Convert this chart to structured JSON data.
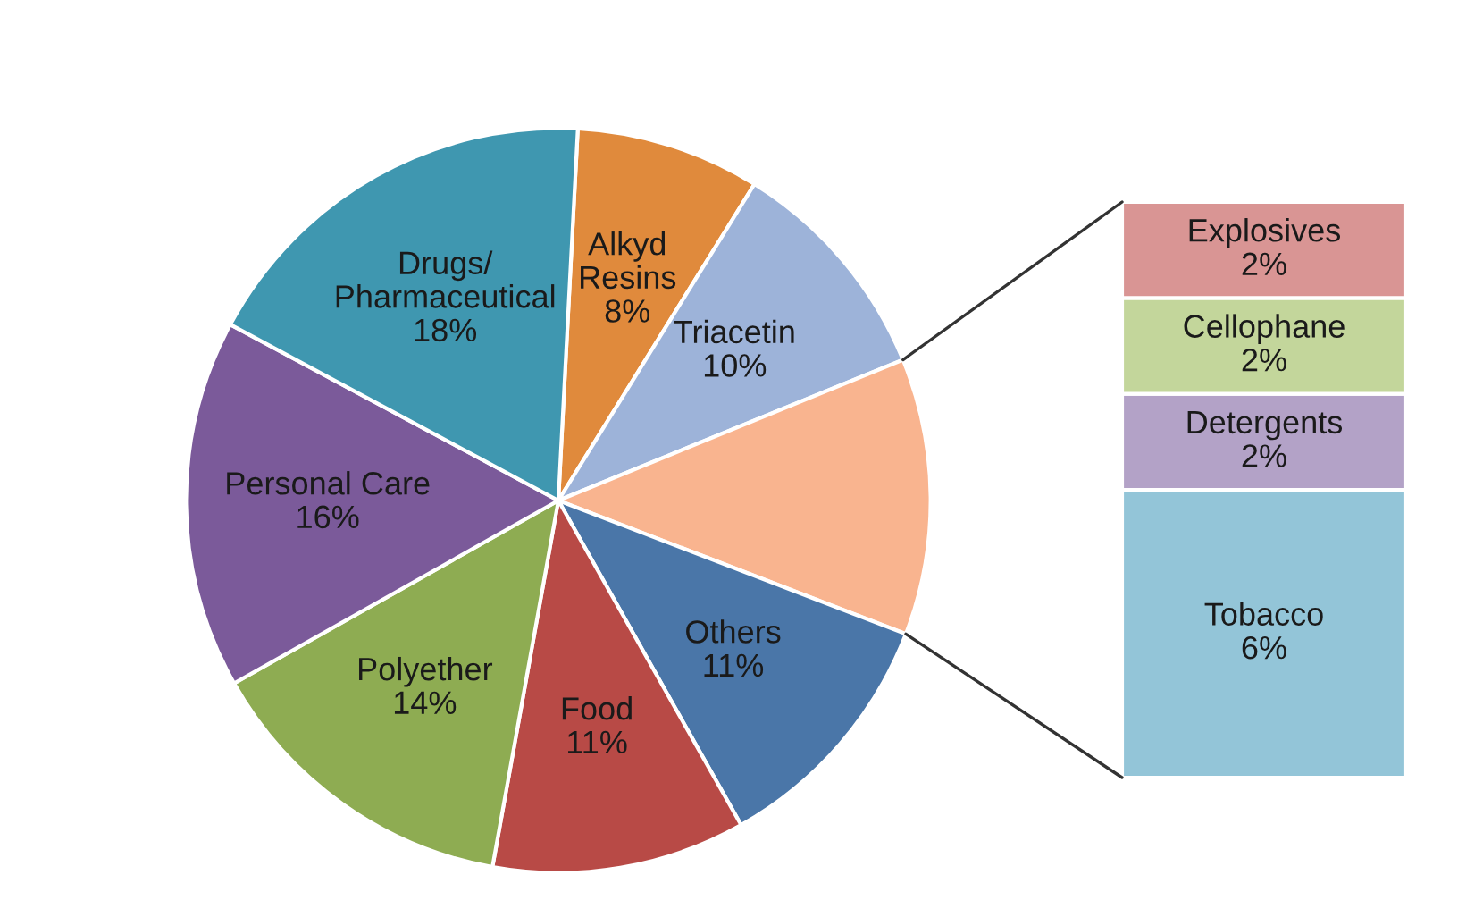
{
  "chart_data": [
    {
      "type": "pie",
      "categories": [
        "Alkyd\nResins",
        "Triacetin",
        null,
        "Others",
        "Food",
        "Polyether",
        "Personal Care",
        "Drugs/\nPharmaceutical"
      ],
      "values": [
        8,
        10,
        12,
        11,
        11,
        14,
        16,
        18
      ],
      "value_labels": [
        "8%",
        "10%",
        null,
        "11%",
        "11%",
        "14%",
        "16%",
        "18%"
      ],
      "colors": [
        "#e08a3c",
        "#9db3d9",
        "#f9b48f",
        "#4a76a8",
        "#b84a46",
        "#8eac52",
        "#7b5a9a",
        "#3f97b0"
      ]
    },
    {
      "type": "bar",
      "stacked": true,
      "categories": [
        null
      ],
      "series": [
        {
          "name": "Tobacco",
          "color": "#93c5d8",
          "values": [
            6
          ],
          "value_labels": [
            "6%"
          ]
        },
        {
          "name": "Detergents",
          "color": "#b3a2c7",
          "values": [
            2
          ],
          "value_labels": [
            "2%"
          ]
        },
        {
          "name": "Cellophane",
          "color": "#c3d69b",
          "values": [
            2
          ],
          "value_labels": [
            "2%"
          ]
        },
        {
          "name": "Explosives",
          "color": "#d99594",
          "values": [
            2
          ],
          "value_labels": [
            "2%"
          ]
        }
      ]
    }
  ]
}
